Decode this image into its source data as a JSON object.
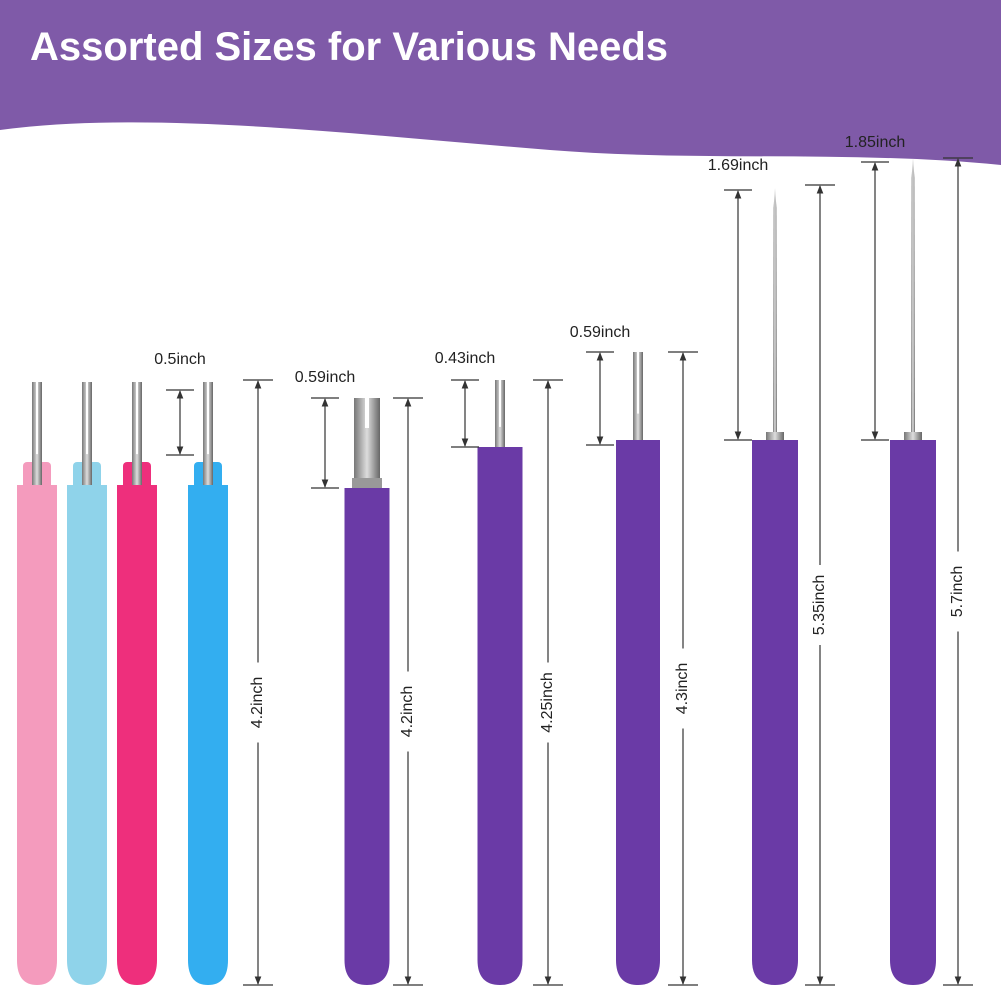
{
  "header": {
    "title": "Assorted Sizes for Various Needs"
  },
  "groups": [
    {
      "tip": "0.5inch",
      "length": "4.2inch"
    },
    {
      "tip": "0.59inch",
      "length": "4.2inch"
    },
    {
      "tip": "0.43inch",
      "length": "4.25inch"
    },
    {
      "tip": "0.59inch",
      "length": "4.3inch"
    },
    {
      "tip": "1.69inch",
      "length": "5.35inch"
    },
    {
      "tip": "1.85inch",
      "length": "5.7inch"
    }
  ]
}
